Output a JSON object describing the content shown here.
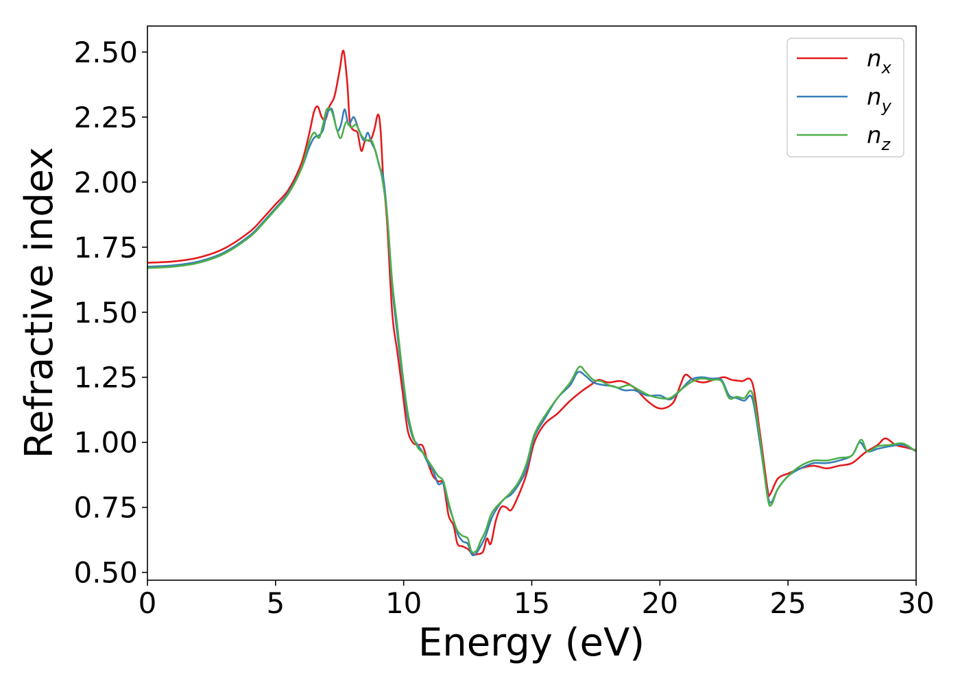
{
  "chart_data": {
    "type": "line",
    "xlabel": "Energy (eV)",
    "ylabel": "Refractive index",
    "xlim": [
      0,
      30
    ],
    "ylim": [
      0.47,
      2.6
    ],
    "xticks": [
      0,
      5,
      10,
      15,
      20,
      25,
      30
    ],
    "xtick_labels": [
      "0",
      "5",
      "10",
      "15",
      "20",
      "25",
      "30"
    ],
    "yticks": [
      0.5,
      0.75,
      1.0,
      1.25,
      1.5,
      1.75,
      2.0,
      2.25,
      2.5
    ],
    "ytick_labels": [
      "0.50",
      "0.75",
      "1.00",
      "1.25",
      "1.50",
      "1.75",
      "2.00",
      "2.25",
      "2.50"
    ],
    "grid": false,
    "legend_position": "top-right",
    "series": [
      {
        "name": "n_x",
        "label_base": "n",
        "label_sub": "x",
        "color": "#e41a1c",
        "points": [
          [
            0,
            1.69
          ],
          [
            1,
            1.695
          ],
          [
            2,
            1.71
          ],
          [
            3,
            1.745
          ],
          [
            4,
            1.81
          ],
          [
            4.5,
            1.86
          ],
          [
            5,
            1.915
          ],
          [
            5.5,
            1.97
          ],
          [
            6,
            2.07
          ],
          [
            6.3,
            2.18
          ],
          [
            6.5,
            2.27
          ],
          [
            6.65,
            2.29
          ],
          [
            6.8,
            2.25
          ],
          [
            6.95,
            2.24
          ],
          [
            7.1,
            2.29
          ],
          [
            7.3,
            2.33
          ],
          [
            7.5,
            2.43
          ],
          [
            7.65,
            2.505
          ],
          [
            7.8,
            2.38
          ],
          [
            7.9,
            2.23
          ],
          [
            8.05,
            2.2
          ],
          [
            8.2,
            2.19
          ],
          [
            8.35,
            2.12
          ],
          [
            8.5,
            2.16
          ],
          [
            8.7,
            2.16
          ],
          [
            8.85,
            2.2
          ],
          [
            9.0,
            2.26
          ],
          [
            9.1,
            2.2
          ],
          [
            9.2,
            2.02
          ],
          [
            9.35,
            1.85
          ],
          [
            9.55,
            1.5
          ],
          [
            9.75,
            1.35
          ],
          [
            9.95,
            1.2
          ],
          [
            10.15,
            1.05
          ],
          [
            10.35,
            1.0
          ],
          [
            10.55,
            0.99
          ],
          [
            10.75,
            0.985
          ],
          [
            10.95,
            0.92
          ],
          [
            11.15,
            0.87
          ],
          [
            11.35,
            0.85
          ],
          [
            11.55,
            0.84
          ],
          [
            11.75,
            0.72
          ],
          [
            11.95,
            0.68
          ],
          [
            12.1,
            0.61
          ],
          [
            12.3,
            0.6
          ],
          [
            12.5,
            0.59
          ],
          [
            12.7,
            0.57
          ],
          [
            12.9,
            0.57
          ],
          [
            13.1,
            0.58
          ],
          [
            13.25,
            0.63
          ],
          [
            13.4,
            0.61
          ],
          [
            13.6,
            0.7
          ],
          [
            13.8,
            0.75
          ],
          [
            14.0,
            0.75
          ],
          [
            14.2,
            0.74
          ],
          [
            14.5,
            0.8
          ],
          [
            14.8,
            0.88
          ],
          [
            15.1,
            1.0
          ],
          [
            15.5,
            1.07
          ],
          [
            16.0,
            1.11
          ],
          [
            16.5,
            1.16
          ],
          [
            17.0,
            1.2
          ],
          [
            17.3,
            1.22
          ],
          [
            17.6,
            1.24
          ],
          [
            18.0,
            1.23
          ],
          [
            18.5,
            1.235
          ],
          [
            19.0,
            1.21
          ],
          [
            19.5,
            1.16
          ],
          [
            20.0,
            1.13
          ],
          [
            20.5,
            1.15
          ],
          [
            20.8,
            1.22
          ],
          [
            21.0,
            1.26
          ],
          [
            21.3,
            1.24
          ],
          [
            21.7,
            1.23
          ],
          [
            22.1,
            1.24
          ],
          [
            22.5,
            1.25
          ],
          [
            22.8,
            1.24
          ],
          [
            23.2,
            1.235
          ],
          [
            23.6,
            1.23
          ],
          [
            23.9,
            1.04
          ],
          [
            24.2,
            0.82
          ],
          [
            24.3,
            0.8
          ],
          [
            24.6,
            0.86
          ],
          [
            25.0,
            0.88
          ],
          [
            25.5,
            0.9
          ],
          [
            26.0,
            0.91
          ],
          [
            26.5,
            0.9
          ],
          [
            27.0,
            0.91
          ],
          [
            27.5,
            0.92
          ],
          [
            28.0,
            0.96
          ],
          [
            28.5,
            0.99
          ],
          [
            28.8,
            1.015
          ],
          [
            29.2,
            0.99
          ],
          [
            29.6,
            0.98
          ],
          [
            30.0,
            0.97
          ]
        ]
      },
      {
        "name": "n_y",
        "label_base": "n",
        "label_sub": "y",
        "color": "#377eb8",
        "points": [
          [
            0,
            1.675
          ],
          [
            1,
            1.68
          ],
          [
            2,
            1.695
          ],
          [
            3,
            1.73
          ],
          [
            4,
            1.795
          ],
          [
            4.5,
            1.845
          ],
          [
            5,
            1.9
          ],
          [
            5.5,
            1.96
          ],
          [
            6,
            2.05
          ],
          [
            6.3,
            2.13
          ],
          [
            6.5,
            2.17
          ],
          [
            6.7,
            2.18
          ],
          [
            6.85,
            2.2
          ],
          [
            7.0,
            2.26
          ],
          [
            7.2,
            2.28
          ],
          [
            7.4,
            2.2
          ],
          [
            7.55,
            2.22
          ],
          [
            7.7,
            2.28
          ],
          [
            7.85,
            2.22
          ],
          [
            8.05,
            2.25
          ],
          [
            8.25,
            2.2
          ],
          [
            8.45,
            2.16
          ],
          [
            8.6,
            2.19
          ],
          [
            8.75,
            2.15
          ],
          [
            8.9,
            2.12
          ],
          [
            9.05,
            2.06
          ],
          [
            9.2,
            2.02
          ],
          [
            9.35,
            1.88
          ],
          [
            9.55,
            1.6
          ],
          [
            9.75,
            1.42
          ],
          [
            9.95,
            1.25
          ],
          [
            10.15,
            1.1
          ],
          [
            10.35,
            1.02
          ],
          [
            10.55,
            0.99
          ],
          [
            10.75,
            0.96
          ],
          [
            10.95,
            0.92
          ],
          [
            11.15,
            0.89
          ],
          [
            11.35,
            0.84
          ],
          [
            11.55,
            0.84
          ],
          [
            11.75,
            0.76
          ],
          [
            11.95,
            0.7
          ],
          [
            12.1,
            0.65
          ],
          [
            12.3,
            0.62
          ],
          [
            12.5,
            0.61
          ],
          [
            12.65,
            0.57
          ],
          [
            12.8,
            0.57
          ],
          [
            13.0,
            0.6
          ],
          [
            13.2,
            0.64
          ],
          [
            13.4,
            0.7
          ],
          [
            13.6,
            0.74
          ],
          [
            13.9,
            0.78
          ],
          [
            14.2,
            0.8
          ],
          [
            14.5,
            0.84
          ],
          [
            14.8,
            0.9
          ],
          [
            15.1,
            1.02
          ],
          [
            15.5,
            1.09
          ],
          [
            16.0,
            1.17
          ],
          [
            16.5,
            1.22
          ],
          [
            16.8,
            1.27
          ],
          [
            17.1,
            1.255
          ],
          [
            17.4,
            1.23
          ],
          [
            17.8,
            1.22
          ],
          [
            18.2,
            1.215
          ],
          [
            18.6,
            1.2
          ],
          [
            19.0,
            1.2
          ],
          [
            19.5,
            1.18
          ],
          [
            20.0,
            1.18
          ],
          [
            20.4,
            1.165
          ],
          [
            20.8,
            1.2
          ],
          [
            21.2,
            1.24
          ],
          [
            21.6,
            1.25
          ],
          [
            22.0,
            1.245
          ],
          [
            22.4,
            1.24
          ],
          [
            22.7,
            1.18
          ],
          [
            23.0,
            1.17
          ],
          [
            23.3,
            1.16
          ],
          [
            23.6,
            1.17
          ],
          [
            23.9,
            1.0
          ],
          [
            24.2,
            0.8
          ],
          [
            24.35,
            0.77
          ],
          [
            24.6,
            0.82
          ],
          [
            25.0,
            0.87
          ],
          [
            25.5,
            0.9
          ],
          [
            26.0,
            0.92
          ],
          [
            26.5,
            0.92
          ],
          [
            27.0,
            0.93
          ],
          [
            27.5,
            0.95
          ],
          [
            27.8,
            1.0
          ],
          [
            28.1,
            0.965
          ],
          [
            28.5,
            0.975
          ],
          [
            29.0,
            0.985
          ],
          [
            29.5,
            0.99
          ],
          [
            30.0,
            0.965
          ]
        ]
      },
      {
        "name": "n_z",
        "label_base": "n",
        "label_sub": "z",
        "color": "#4daf4a",
        "points": [
          [
            0,
            1.67
          ],
          [
            1,
            1.675
          ],
          [
            2,
            1.69
          ],
          [
            3,
            1.725
          ],
          [
            4,
            1.79
          ],
          [
            4.5,
            1.84
          ],
          [
            5,
            1.895
          ],
          [
            5.5,
            1.955
          ],
          [
            6,
            2.05
          ],
          [
            6.3,
            2.15
          ],
          [
            6.5,
            2.19
          ],
          [
            6.7,
            2.17
          ],
          [
            6.85,
            2.22
          ],
          [
            7.0,
            2.28
          ],
          [
            7.2,
            2.27
          ],
          [
            7.4,
            2.2
          ],
          [
            7.55,
            2.17
          ],
          [
            7.75,
            2.23
          ],
          [
            7.95,
            2.21
          ],
          [
            8.15,
            2.22
          ],
          [
            8.35,
            2.18
          ],
          [
            8.55,
            2.16
          ],
          [
            8.75,
            2.16
          ],
          [
            8.95,
            2.1
          ],
          [
            9.15,
            2.02
          ],
          [
            9.35,
            1.88
          ],
          [
            9.55,
            1.62
          ],
          [
            9.75,
            1.45
          ],
          [
            9.95,
            1.27
          ],
          [
            10.15,
            1.12
          ],
          [
            10.35,
            1.03
          ],
          [
            10.55,
            0.98
          ],
          [
            10.75,
            0.96
          ],
          [
            10.95,
            0.93
          ],
          [
            11.15,
            0.9
          ],
          [
            11.35,
            0.87
          ],
          [
            11.55,
            0.85
          ],
          [
            11.75,
            0.77
          ],
          [
            11.95,
            0.7
          ],
          [
            12.1,
            0.66
          ],
          [
            12.3,
            0.64
          ],
          [
            12.5,
            0.63
          ],
          [
            12.65,
            0.58
          ],
          [
            12.85,
            0.585
          ],
          [
            13.0,
            0.62
          ],
          [
            13.2,
            0.66
          ],
          [
            13.4,
            0.72
          ],
          [
            13.6,
            0.75
          ],
          [
            13.9,
            0.78
          ],
          [
            14.2,
            0.81
          ],
          [
            14.5,
            0.85
          ],
          [
            14.8,
            0.92
          ],
          [
            15.1,
            1.03
          ],
          [
            15.5,
            1.1
          ],
          [
            16.0,
            1.17
          ],
          [
            16.5,
            1.23
          ],
          [
            16.85,
            1.29
          ],
          [
            17.1,
            1.27
          ],
          [
            17.4,
            1.24
          ],
          [
            17.7,
            1.235
          ],
          [
            18.0,
            1.22
          ],
          [
            18.4,
            1.21
          ],
          [
            18.8,
            1.22
          ],
          [
            19.2,
            1.2
          ],
          [
            19.6,
            1.18
          ],
          [
            20.0,
            1.17
          ],
          [
            20.4,
            1.17
          ],
          [
            20.8,
            1.2
          ],
          [
            21.2,
            1.23
          ],
          [
            21.6,
            1.245
          ],
          [
            22.0,
            1.24
          ],
          [
            22.4,
            1.235
          ],
          [
            22.7,
            1.17
          ],
          [
            23.0,
            1.175
          ],
          [
            23.3,
            1.17
          ],
          [
            23.6,
            1.19
          ],
          [
            23.9,
            1.02
          ],
          [
            24.2,
            0.79
          ],
          [
            24.35,
            0.76
          ],
          [
            24.6,
            0.82
          ],
          [
            25.0,
            0.87
          ],
          [
            25.5,
            0.91
          ],
          [
            26.0,
            0.93
          ],
          [
            26.5,
            0.93
          ],
          [
            27.0,
            0.94
          ],
          [
            27.5,
            0.95
          ],
          [
            27.85,
            1.01
          ],
          [
            28.1,
            0.965
          ],
          [
            28.5,
            0.985
          ],
          [
            29.0,
            0.99
          ],
          [
            29.5,
            0.995
          ],
          [
            30.0,
            0.965
          ]
        ]
      }
    ]
  }
}
